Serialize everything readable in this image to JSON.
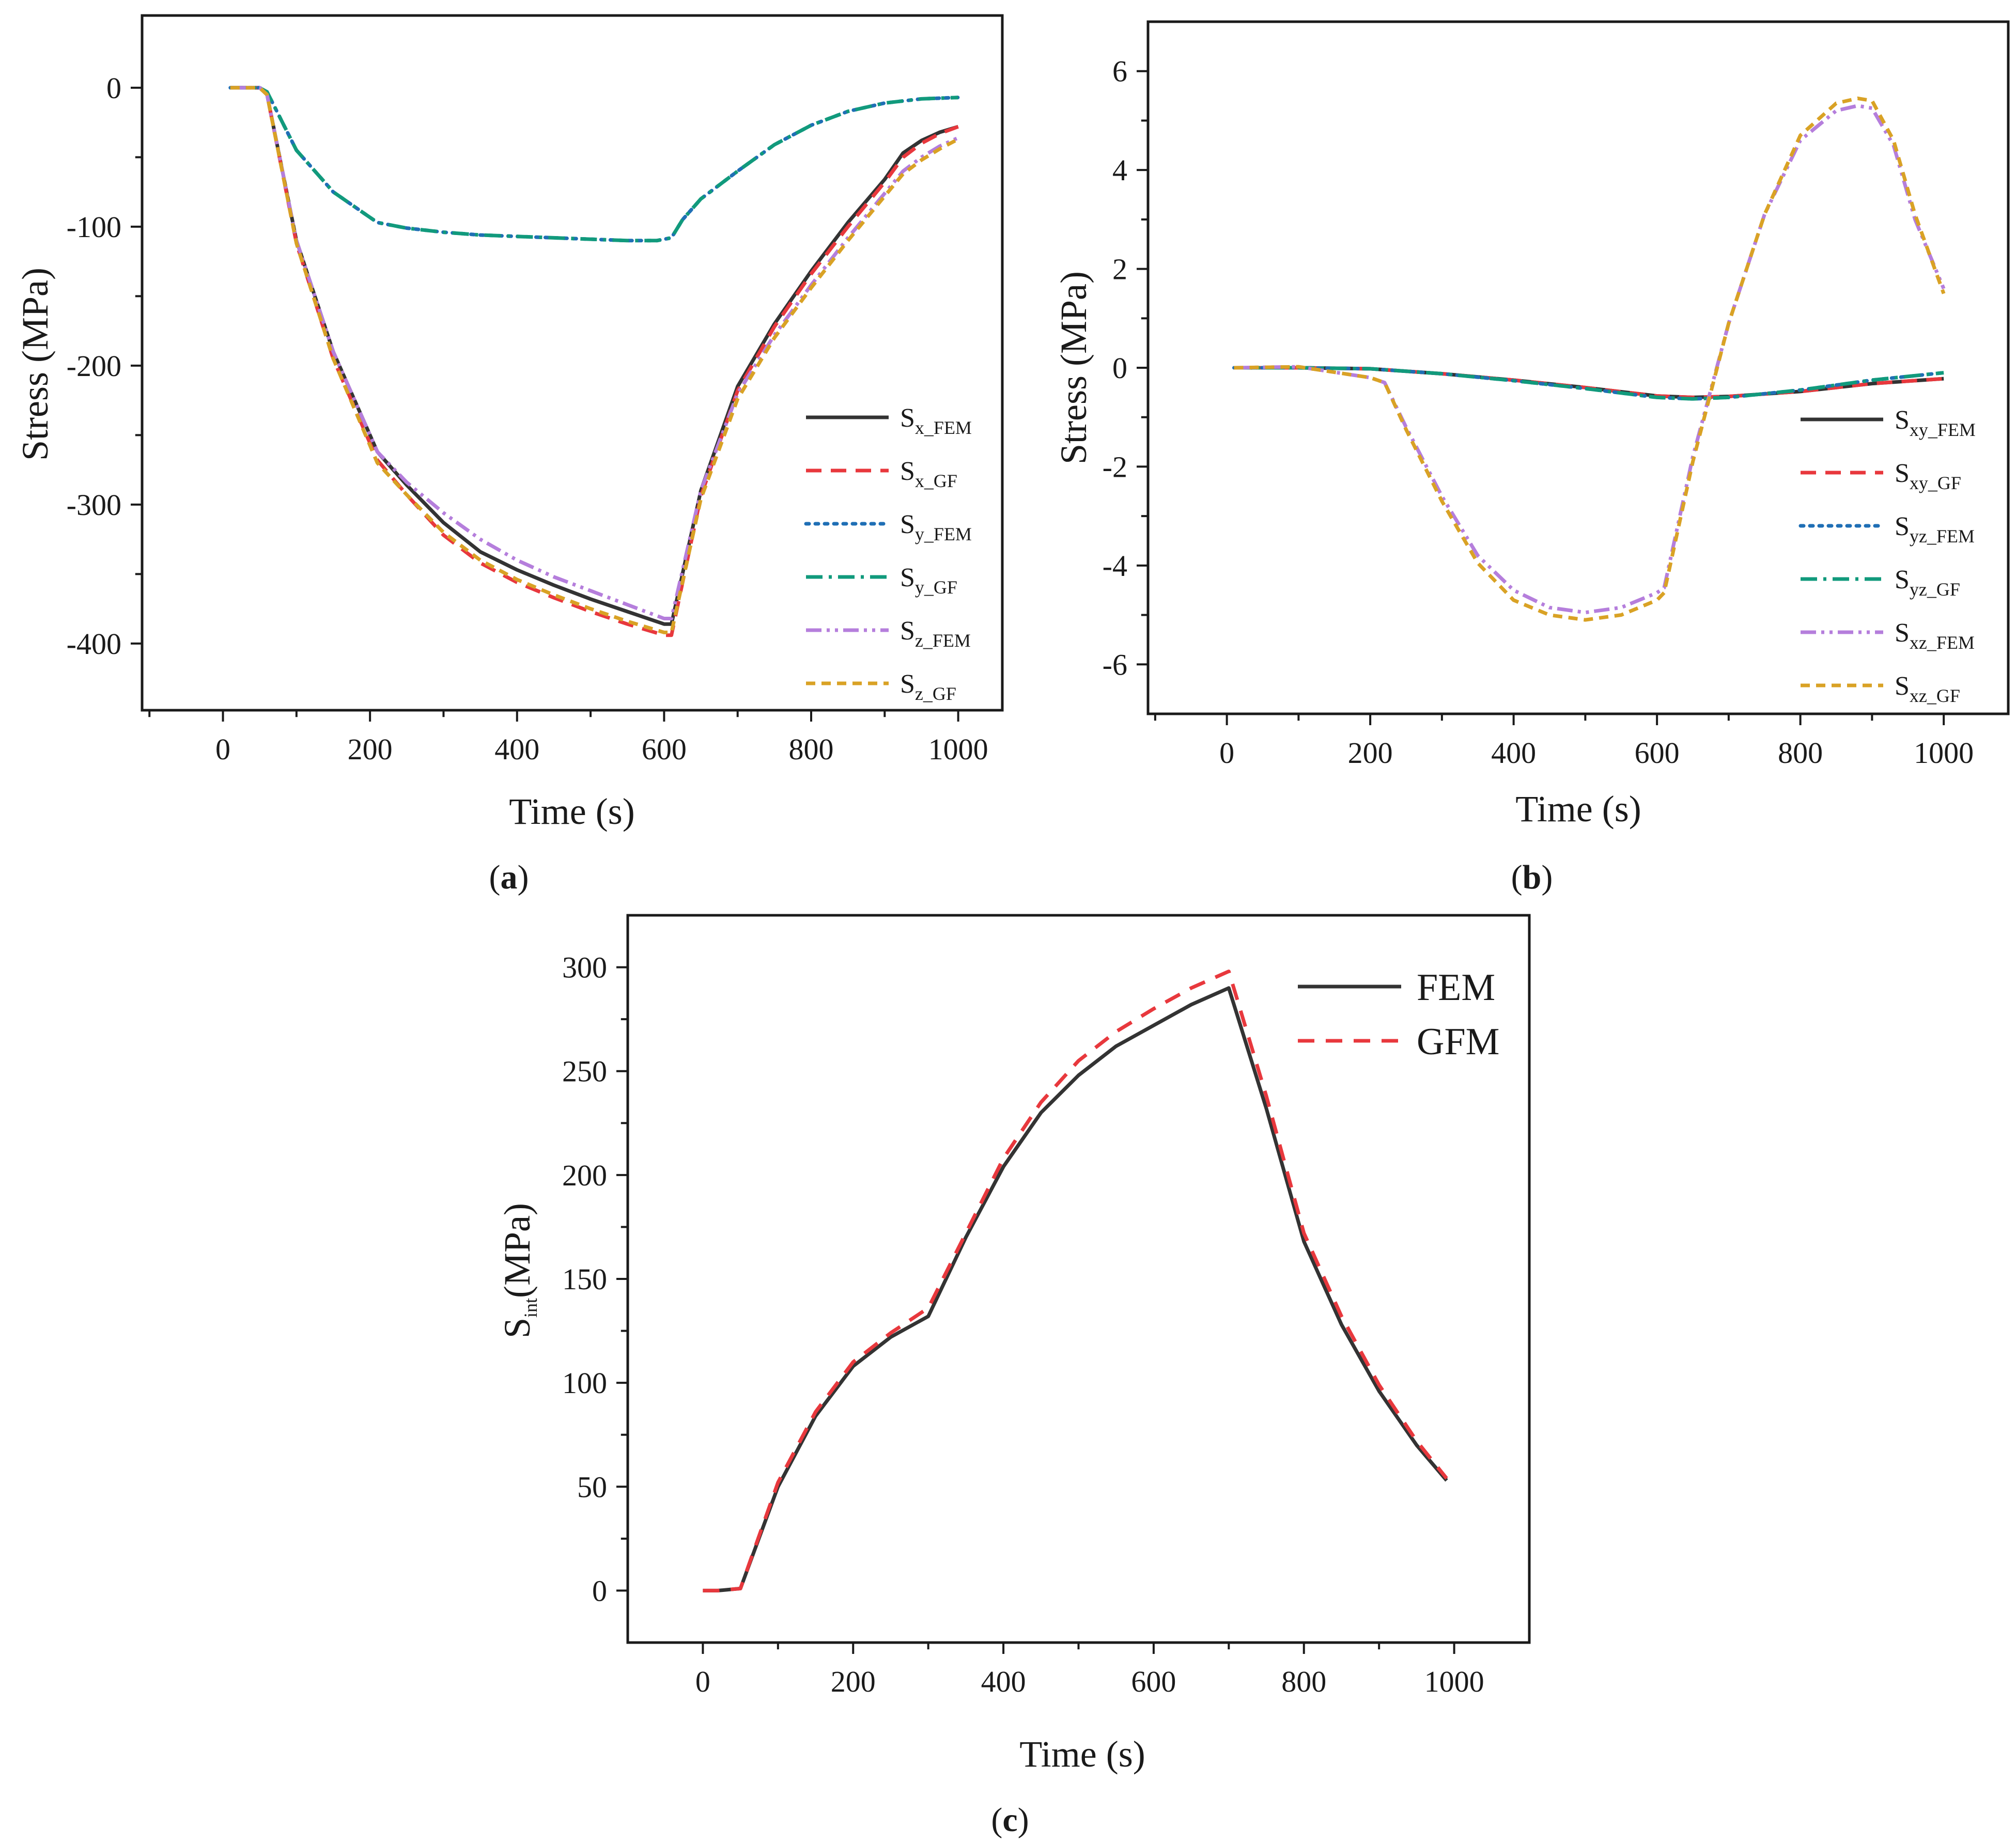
{
  "figure": {
    "colors": {
      "black": "#333333",
      "red": "#e8383d",
      "blue": "#1f6fb5",
      "teal": "#119a7c",
      "purple": "#b57edc",
      "orange": "#d9a225"
    }
  },
  "chart_data": [
    {
      "id": "a",
      "type": "line",
      "panel_label": "a",
      "xlabel": "Time (s)",
      "ylabel": "Stress (MPa)",
      "xlim": [
        -110,
        1060
      ],
      "ylim": [
        -448,
        52
      ],
      "xticks": [
        0,
        200,
        400,
        600,
        800,
        1000
      ],
      "yticks": [
        0,
        -100,
        -200,
        -300,
        -400
      ],
      "legend_position": "bottom-right",
      "series": [
        {
          "name": "S",
          "sub": "x_FEM",
          "color": "#333333",
          "dash": "none",
          "x": [
            10,
            50,
            60,
            100,
            150,
            210,
            250,
            300,
            350,
            400,
            450,
            500,
            550,
            600,
            610,
            650,
            700,
            750,
            800,
            850,
            900,
            925,
            950,
            975,
            1000
          ],
          "y": [
            0,
            0,
            -5,
            -110,
            -190,
            -262,
            -286,
            -313,
            -334,
            -347,
            -358,
            -368,
            -377,
            -386,
            -386,
            -290,
            -215,
            -170,
            -132,
            -97,
            -66,
            -47,
            -38,
            -32,
            -28
          ]
        },
        {
          "name": "S",
          "sub": "x_GF",
          "color": "#e8383d",
          "dash": "30,18",
          "x": [
            10,
            50,
            60,
            100,
            150,
            210,
            250,
            300,
            350,
            400,
            450,
            500,
            550,
            600,
            610,
            650,
            700,
            750,
            800,
            850,
            900,
            925,
            950,
            975,
            1000
          ],
          "y": [
            0,
            0,
            -5,
            -112,
            -195,
            -268,
            -293,
            -322,
            -342,
            -356,
            -367,
            -377,
            -386,
            -394,
            -394,
            -294,
            -218,
            -172,
            -134,
            -100,
            -68,
            -50,
            -40,
            -33,
            -28
          ]
        },
        {
          "name": "S",
          "sub": "y_FEM",
          "color": "#1f6fb5",
          "dash": "6,12",
          "x": [
            10,
            50,
            60,
            100,
            150,
            210,
            250,
            300,
            350,
            400,
            450,
            500,
            550,
            590,
            610,
            625,
            650,
            700,
            750,
            800,
            850,
            900,
            950,
            1000
          ],
          "y": [
            0,
            0,
            -3,
            -45,
            -75,
            -97,
            -101,
            -104,
            -106,
            -107,
            -108,
            -109,
            -110,
            -110,
            -108,
            -95,
            -80,
            -60,
            -41,
            -27,
            -17,
            -11,
            -8,
            -7
          ]
        },
        {
          "name": "S",
          "sub": "y_GF",
          "color": "#119a7c",
          "dash": "32,12,6,12",
          "x": [
            10,
            50,
            60,
            100,
            150,
            210,
            250,
            300,
            350,
            400,
            450,
            500,
            550,
            590,
            610,
            625,
            650,
            700,
            750,
            800,
            850,
            900,
            950,
            1000
          ],
          "y": [
            0,
            0,
            -3,
            -45,
            -75,
            -97,
            -101,
            -104,
            -106,
            -107,
            -108,
            -109,
            -110,
            -110,
            -108,
            -95,
            -80,
            -60,
            -41,
            -27,
            -17,
            -11,
            -8,
            -7
          ]
        },
        {
          "name": "S",
          "sub": "z_FEM",
          "color": "#b57edc",
          "dash": "30,10,6,10,6,10",
          "x": [
            10,
            50,
            60,
            100,
            150,
            210,
            250,
            300,
            350,
            400,
            450,
            500,
            550,
            600,
            610,
            650,
            700,
            750,
            800,
            850,
            900,
            925,
            950,
            975,
            1000
          ],
          "y": [
            0,
            0,
            -5,
            -110,
            -190,
            -262,
            -284,
            -306,
            -325,
            -340,
            -352,
            -362,
            -372,
            -382,
            -382,
            -290,
            -220,
            -178,
            -142,
            -108,
            -76,
            -60,
            -50,
            -42,
            -36
          ]
        },
        {
          "name": "S",
          "sub": "z_GF",
          "color": "#d9a225",
          "dash": "18,12",
          "x": [
            10,
            50,
            60,
            100,
            150,
            210,
            250,
            300,
            350,
            400,
            450,
            500,
            550,
            600,
            610,
            650,
            700,
            750,
            800,
            850,
            900,
            925,
            950,
            975,
            1000
          ],
          "y": [
            0,
            0,
            -5,
            -112,
            -195,
            -270,
            -293,
            -320,
            -340,
            -354,
            -365,
            -375,
            -384,
            -392,
            -392,
            -296,
            -224,
            -180,
            -144,
            -110,
            -78,
            -62,
            -52,
            -44,
            -37
          ]
        }
      ]
    },
    {
      "id": "b",
      "type": "line",
      "panel_label": "b",
      "xlabel": "Time (s)",
      "ylabel": "Stress (MPa)",
      "xlim": [
        -110,
        1090
      ],
      "ylim": [
        -7,
        7
      ],
      "xticks": [
        0,
        200,
        400,
        600,
        800,
        1000
      ],
      "yticks": [
        6,
        4,
        2,
        0,
        -2,
        -4,
        -6
      ],
      "legend_position": "bottom-right",
      "series": [
        {
          "name": "S",
          "sub": "xy_FEM",
          "color": "#333333",
          "dash": "none",
          "x": [
            10,
            100,
            200,
            300,
            400,
            500,
            600,
            650,
            700,
            800,
            900,
            1000
          ],
          "y": [
            0,
            0,
            -0.02,
            -0.12,
            -0.25,
            -0.4,
            -0.57,
            -0.6,
            -0.58,
            -0.48,
            -0.32,
            -0.22
          ]
        },
        {
          "name": "S",
          "sub": "xy_GF",
          "color": "#e8383d",
          "dash": "30,18",
          "x": [
            10,
            100,
            200,
            300,
            400,
            500,
            600,
            650,
            700,
            800,
            900,
            1000
          ],
          "y": [
            0,
            0,
            -0.02,
            -0.12,
            -0.25,
            -0.4,
            -0.57,
            -0.6,
            -0.58,
            -0.48,
            -0.32,
            -0.22
          ]
        },
        {
          "name": "S",
          "sub": "yz_FEM",
          "color": "#1f6fb5",
          "dash": "6,12",
          "x": [
            10,
            100,
            200,
            300,
            400,
            500,
            600,
            650,
            700,
            800,
            900,
            1000
          ],
          "y": [
            0,
            0,
            -0.02,
            -0.12,
            -0.26,
            -0.42,
            -0.6,
            -0.63,
            -0.6,
            -0.45,
            -0.25,
            -0.1
          ]
        },
        {
          "name": "S",
          "sub": "yz_GF",
          "color": "#119a7c",
          "dash": "32,12,6,12",
          "x": [
            10,
            100,
            200,
            300,
            400,
            500,
            600,
            650,
            700,
            800,
            900,
            1000
          ],
          "y": [
            0,
            0,
            -0.02,
            -0.12,
            -0.26,
            -0.42,
            -0.6,
            -0.63,
            -0.6,
            -0.45,
            -0.25,
            -0.1
          ]
        },
        {
          "name": "S",
          "sub": "xz_FEM",
          "color": "#b57edc",
          "dash": "30,10,6,10,6,10",
          "x": [
            10,
            100,
            200,
            220,
            250,
            300,
            350,
            400,
            450,
            500,
            550,
            600,
            610,
            650,
            700,
            750,
            800,
            850,
            880,
            900,
            930,
            960,
            1000
          ],
          "y": [
            0,
            0.02,
            -0.2,
            -0.3,
            -1.2,
            -2.6,
            -3.8,
            -4.5,
            -4.85,
            -4.95,
            -4.85,
            -4.55,
            -4.45,
            -1.8,
            0.9,
            3.1,
            4.6,
            5.2,
            5.3,
            5.25,
            4.5,
            3.0,
            1.6
          ]
        },
        {
          "name": "S",
          "sub": "xz_GF",
          "color": "#d9a225",
          "dash": "18,12",
          "x": [
            10,
            100,
            200,
            220,
            250,
            300,
            350,
            400,
            450,
            500,
            550,
            600,
            610,
            650,
            700,
            750,
            800,
            850,
            880,
            900,
            930,
            960,
            1000
          ],
          "y": [
            0,
            0.02,
            -0.2,
            -0.3,
            -1.25,
            -2.7,
            -3.95,
            -4.7,
            -5.0,
            -5.1,
            -5.0,
            -4.7,
            -4.55,
            -1.9,
            0.9,
            3.1,
            4.7,
            5.35,
            5.45,
            5.4,
            4.6,
            3.1,
            1.5
          ]
        }
      ]
    },
    {
      "id": "c",
      "type": "line",
      "panel_label": "c",
      "xlabel": "Time (s)",
      "ylabel": "S",
      "ylabel_sub": "int",
      "ylabel_rest": "(MPa)",
      "xlim": [
        -100,
        1100
      ],
      "ylim": [
        -25,
        325
      ],
      "xticks": [
        0,
        200,
        400,
        600,
        800,
        1000
      ],
      "yticks": [
        300,
        250,
        200,
        150,
        100,
        50,
        0
      ],
      "legend_position": "top-right",
      "series": [
        {
          "name": "FEM",
          "color": "#333333",
          "dash": "none",
          "x": [
            0,
            20,
            50,
            100,
            150,
            200,
            250,
            300,
            350,
            400,
            450,
            500,
            550,
            600,
            650,
            700,
            750,
            800,
            850,
            900,
            950,
            990
          ],
          "y": [
            0,
            0,
            1,
            50,
            84,
            108,
            122,
            132,
            170,
            204,
            230,
            248,
            262,
            272,
            282,
            290,
            232,
            168,
            128,
            96,
            70,
            53
          ]
        },
        {
          "name": "GFM",
          "color": "#e8383d",
          "dash": "32,22",
          "x": [
            0,
            20,
            50,
            100,
            150,
            200,
            250,
            300,
            350,
            400,
            450,
            500,
            550,
            600,
            650,
            700,
            750,
            800,
            850,
            900,
            950,
            990
          ],
          "y": [
            0,
            0,
            1,
            52,
            86,
            110,
            124,
            136,
            172,
            208,
            235,
            255,
            269,
            280,
            290,
            298,
            238,
            172,
            132,
            99,
            72,
            54
          ]
        }
      ]
    }
  ]
}
